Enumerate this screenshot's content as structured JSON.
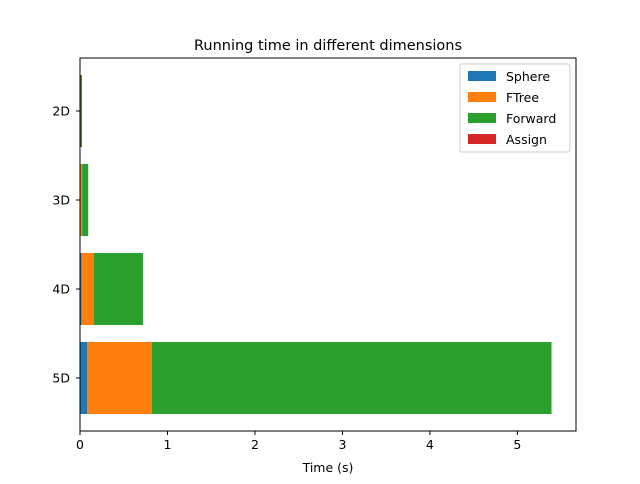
{
  "chart_data": {
    "type": "bar",
    "orientation": "horizontal",
    "stacked": true,
    "title": "Running time in different dimensions",
    "xlabel": "Time (s)",
    "ylabel": "",
    "categories": [
      "2D",
      "3D",
      "4D",
      "5D"
    ],
    "xlim": [
      0,
      5.67
    ],
    "xticks": [
      0,
      1,
      2,
      3,
      4,
      5
    ],
    "grid": false,
    "legend_position": "top-right",
    "series": [
      {
        "name": "Sphere",
        "color": "#1f77b4",
        "values": [
          0.002,
          0.004,
          0.02,
          0.08
        ]
      },
      {
        "name": "FTree",
        "color": "#ff7f0e",
        "values": [
          0.003,
          0.02,
          0.14,
          0.74
        ]
      },
      {
        "name": "Forward",
        "color": "#2ca02c",
        "values": [
          0.005,
          0.07,
          0.56,
          4.57
        ]
      },
      {
        "name": "Assign",
        "color": "#d62728",
        "values": [
          0.012,
          0.0,
          0.0,
          0.0
        ]
      }
    ]
  }
}
